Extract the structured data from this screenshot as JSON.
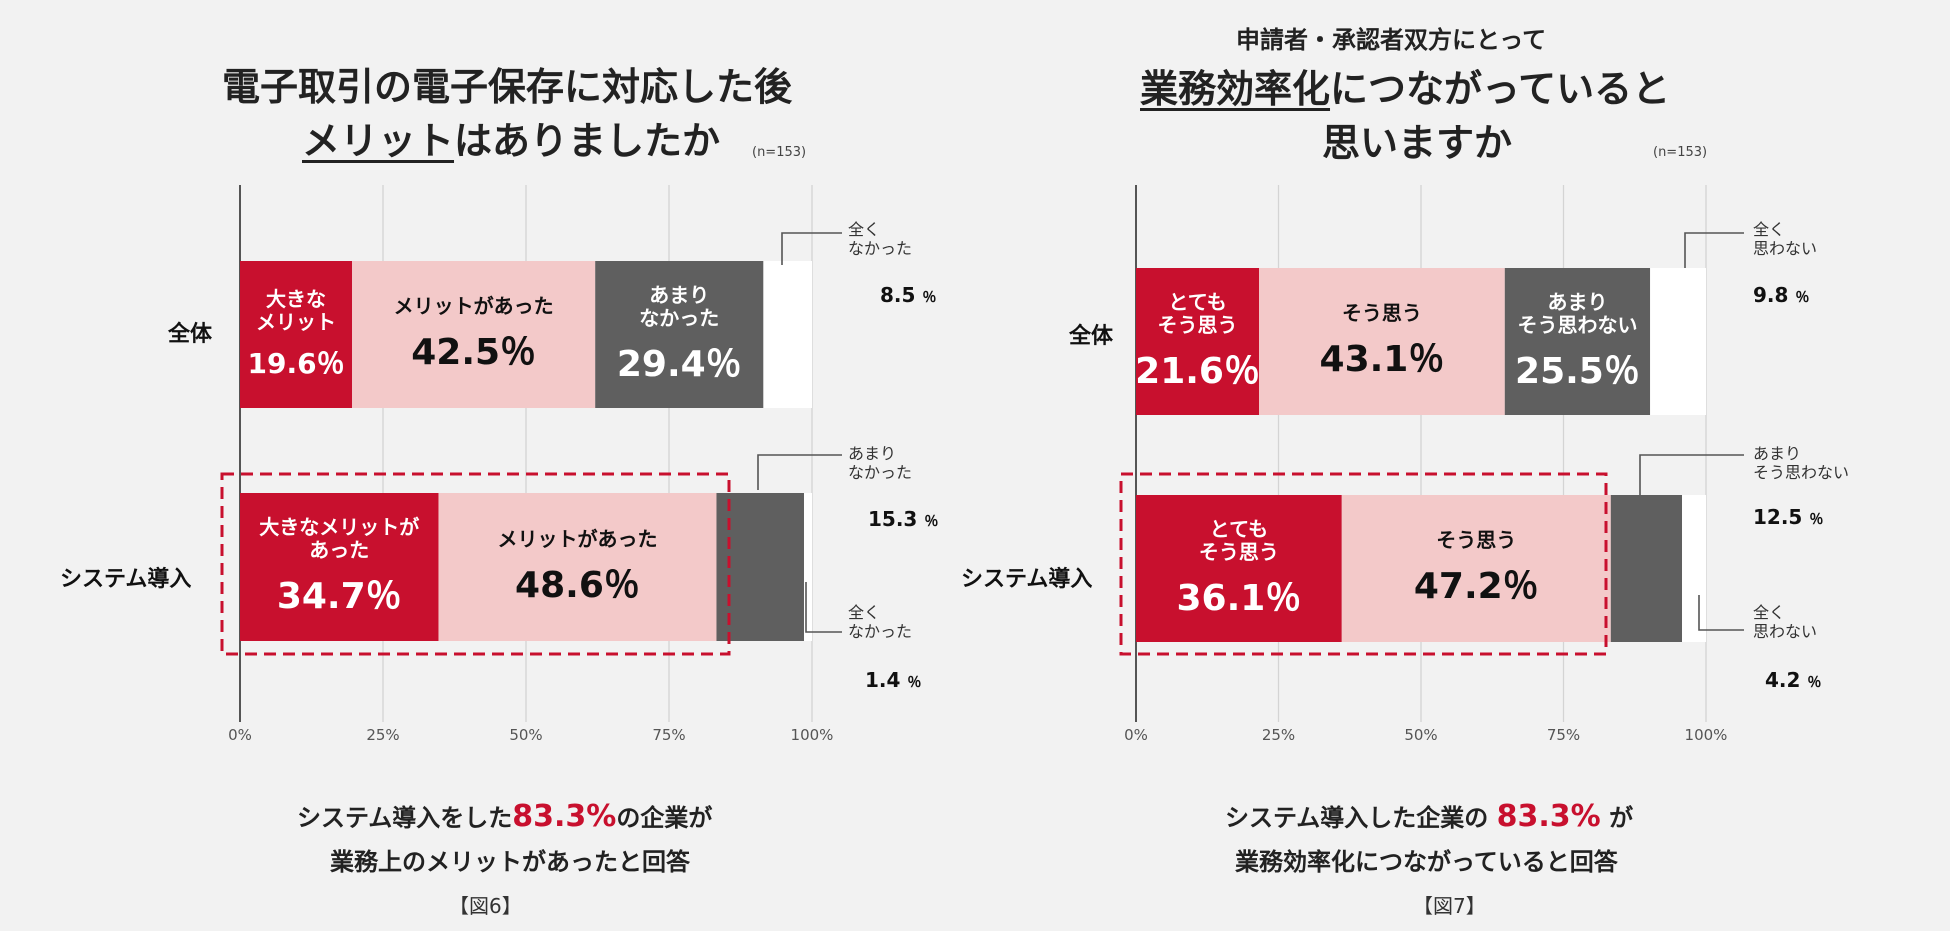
{
  "colors": {
    "strong": "#c8102e",
    "mid": "#f3c9c9",
    "dark_gray": "#5f5f5f",
    "white": "#ffffff",
    "dashed": "#c8102e"
  },
  "figures": [
    {
      "id": "fig6",
      "title_line1": "電子取引の電子保存に対応した後",
      "title_line2_underlined": "メリット",
      "title_line2_rest": "はありましたか",
      "sample_note": "(n=153)",
      "conclusion_pre": "システム導入をした",
      "conclusion_highlight": "83.3%",
      "conclusion_post": "の企業が",
      "conclusion_line2": "業務上のメリットがあったと回答",
      "figure_label": "【図6】"
    },
    {
      "id": "fig7",
      "subtitle": "申請者・承認者双方にとって",
      "title_line1_underlined": "業務効率化",
      "title_line1_rest": "につながっていると",
      "title_line2": "思いますか",
      "sample_note": "(n=153)",
      "conclusion_pre": "システム導入した企業の",
      "conclusion_highlight": "83.3%",
      "conclusion_post": "が",
      "conclusion_line2": "業務効率化につながっていると回答",
      "figure_label": "【図7】"
    }
  ],
  "chart_data": [
    {
      "type": "bar",
      "orientation": "horizontal",
      "stacked": true,
      "title": "電子取引の電子保存に対応した後 メリットはありましたか",
      "categories": [
        "全体",
        "システム導入"
      ],
      "series": [
        {
          "name": "大きなメリット",
          "values": [
            19.6,
            34.7
          ]
        },
        {
          "name": "メリットがあった",
          "values": [
            42.5,
            48.6
          ]
        },
        {
          "name": "あまりなかった",
          "values": [
            29.4,
            15.3
          ]
        },
        {
          "name": "全くなかった",
          "values": [
            8.5,
            1.4
          ]
        }
      ],
      "x_ticks": [
        "0%",
        "25%",
        "50%",
        "75%",
        "100%"
      ],
      "xlim": [
        0,
        100
      ],
      "grid": true,
      "segment_labels": [
        [
          "大きな\nメリット",
          "メリットがあった",
          "あまり\nなかった",
          ""
        ],
        [
          "大きなメリットが\nあった",
          "メリットがあった",
          "",
          ""
        ]
      ],
      "value_labels": [
        [
          "19.6％",
          "42.5％",
          "29.4％",
          ""
        ],
        [
          "34.7％",
          "48.6％",
          "",
          ""
        ]
      ],
      "callouts": [
        {
          "label": "全く\nなかった",
          "value": "8.5",
          "unit": "％"
        },
        {
          "label": "あまり\nなかった",
          "value": "15.3",
          "unit": "％"
        },
        {
          "label": "全く\nなかった",
          "value": "1.4",
          "unit": "％"
        }
      ]
    },
    {
      "type": "bar",
      "orientation": "horizontal",
      "stacked": true,
      "title": "申請者・承認者双方にとって 業務効率化につながっていると思いますか",
      "categories": [
        "全体",
        "システム導入"
      ],
      "series": [
        {
          "name": "とてもそう思う",
          "values": [
            21.6,
            36.1
          ]
        },
        {
          "name": "そう思う",
          "values": [
            43.1,
            47.2
          ]
        },
        {
          "name": "あまりそう思わない",
          "values": [
            25.5,
            12.5
          ]
        },
        {
          "name": "全く思わない",
          "values": [
            9.8,
            4.2
          ]
        }
      ],
      "x_ticks": [
        "0%",
        "25%",
        "50%",
        "75%",
        "100%"
      ],
      "xlim": [
        0,
        100
      ],
      "grid": true,
      "segment_labels": [
        [
          "とても\nそう思う",
          "そう思う",
          "あまり\nそう思わない",
          ""
        ],
        [
          "とても\nそう思う",
          "そう思う",
          "",
          ""
        ]
      ],
      "value_labels": [
        [
          "21.6％",
          "43.1％",
          "25.5％",
          ""
        ],
        [
          "36.1％",
          "47.2％",
          "",
          ""
        ]
      ],
      "callouts": [
        {
          "label": "全く\n思わない",
          "value": "9.8",
          "unit": "％"
        },
        {
          "label": "あまり\nそう思わない",
          "value": "12.5",
          "unit": "％"
        },
        {
          "label": "全く\n思わない",
          "value": "4.2",
          "unit": "％"
        }
      ]
    }
  ]
}
